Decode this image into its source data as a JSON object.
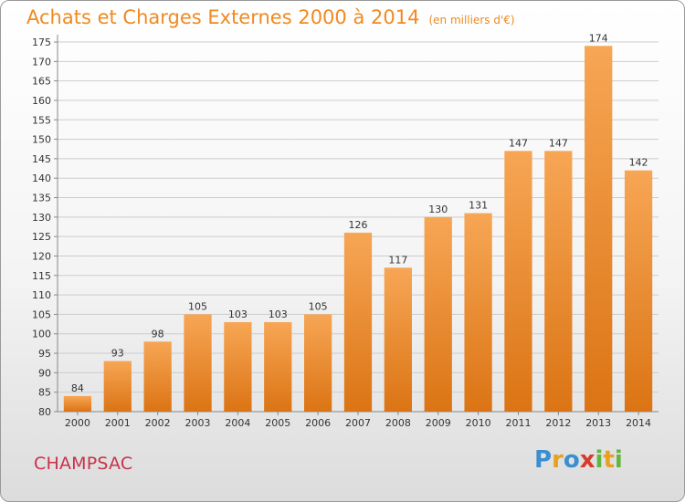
{
  "title": "Achats et Charges Externes 2000 à 2014",
  "subtitle": "(en milliers d'€)",
  "commune": "CHAMPSAC",
  "logo": {
    "text": "Proxiti",
    "letters": [
      {
        "char": "P",
        "color": "#3a8fd0"
      },
      {
        "char": "r",
        "color": "#e8a020"
      },
      {
        "char": "o",
        "color": "#3a8fd0"
      },
      {
        "char": "x",
        "color": "#d63c2c"
      },
      {
        "char": "i",
        "color": "#62b540"
      },
      {
        "char": "t",
        "color": "#e8a020"
      },
      {
        "char": "i",
        "color": "#62b540"
      }
    ]
  },
  "colors": {
    "title": "#f08a20",
    "commune": "#c8324a",
    "bar_top": "#f7a655",
    "bar_bottom": "#db7414",
    "grid": "#cccccc"
  },
  "chart_data": {
    "type": "bar",
    "categories": [
      "2000",
      "2001",
      "2002",
      "2003",
      "2004",
      "2005",
      "2006",
      "2007",
      "2008",
      "2009",
      "2010",
      "2011",
      "2012",
      "2013",
      "2014"
    ],
    "values": [
      84,
      93,
      98,
      105,
      103,
      103,
      105,
      126,
      117,
      130,
      131,
      147,
      147,
      174,
      142
    ],
    "ylim": [
      80,
      175
    ],
    "yticks": [
      80,
      85,
      90,
      95,
      100,
      105,
      110,
      115,
      120,
      125,
      130,
      135,
      140,
      145,
      150,
      155,
      160,
      165,
      170,
      175
    ],
    "grid": true,
    "data_labels": true
  }
}
